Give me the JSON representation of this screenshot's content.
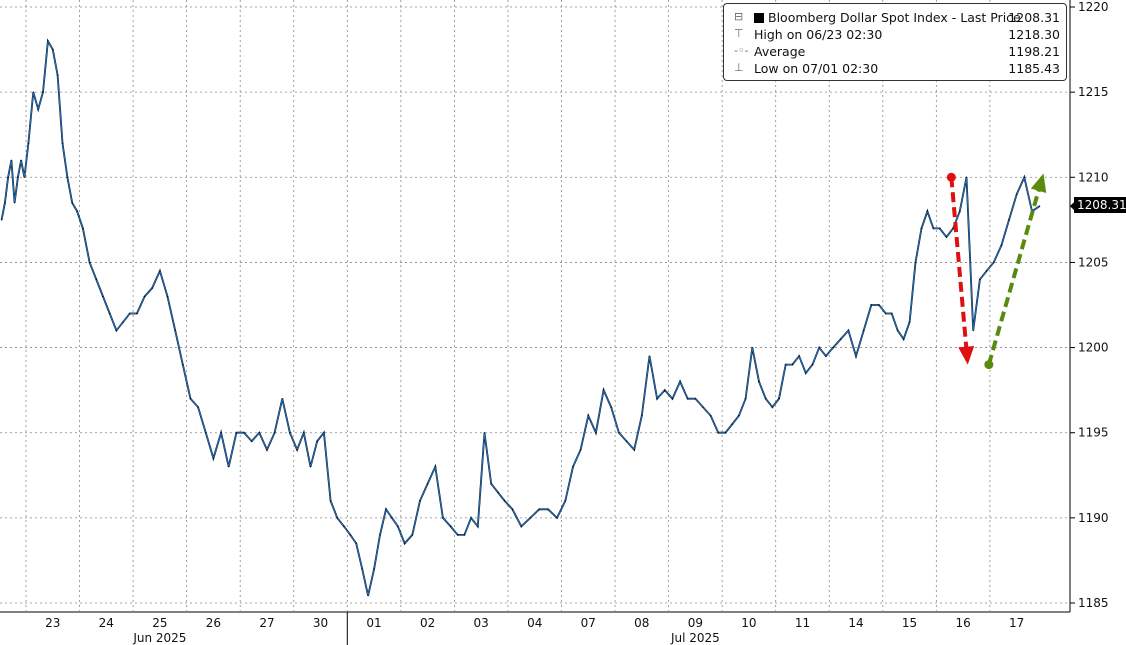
{
  "chart_data": {
    "type": "line",
    "title": "",
    "xlabel": "",
    "ylabel": "",
    "ylim": [
      1185,
      1220
    ],
    "yticks": [
      1185,
      1190,
      1195,
      1200,
      1205,
      1210,
      1215,
      1220
    ],
    "grid": true,
    "legend_placement": "top-right",
    "colors": {
      "line": "#1f6fc0",
      "line_dark": "#000000",
      "down_arrow": "#e01010",
      "up_arrow": "#5a8a10"
    },
    "days": [
      {
        "label": "",
        "date": "2025-06-20",
        "values": [
          1207.5,
          1208.5,
          1210,
          1211,
          1208.5,
          1210,
          1211,
          1210
        ]
      },
      {
        "label": "23",
        "date": "2025-06-23",
        "values": [
          1212,
          1215,
          1214,
          1215,
          1218,
          1217.5,
          1216,
          1212,
          1210,
          1208.5,
          1208
        ]
      },
      {
        "label": "24",
        "date": "2025-06-24",
        "values": [
          1207,
          1205,
          1204,
          1203,
          1202,
          1201,
          1201.5,
          1202
        ]
      },
      {
        "label": "25",
        "date": "2025-06-25",
        "values": [
          1202,
          1203,
          1203.5,
          1204.5,
          1203,
          1201,
          1199
        ]
      },
      {
        "label": "26",
        "date": "2025-06-26",
        "values": [
          1197,
          1196.5,
          1195,
          1193.5,
          1195,
          1193,
          1195
        ]
      },
      {
        "label": "27",
        "date": "2025-06-27",
        "values": [
          1195,
          1194.5,
          1195,
          1194,
          1195,
          1197,
          1195
        ]
      },
      {
        "label": "30",
        "date": "2025-06-30",
        "values": [
          1194,
          1195,
          1193,
          1194.5,
          1195,
          1191,
          1190,
          1189.5
        ]
      },
      {
        "label": "01",
        "date": "2025-07-01",
        "values": [
          1189,
          1188.5,
          1187,
          1185.43,
          1187,
          1189,
          1190.5,
          1190,
          1189.5
        ]
      },
      {
        "label": "02",
        "date": "2025-07-02",
        "values": [
          1188.5,
          1189,
          1191,
          1192,
          1193,
          1190,
          1189.5
        ]
      },
      {
        "label": "03",
        "date": "2025-07-03",
        "values": [
          1189,
          1189,
          1190,
          1189.5,
          1195,
          1192,
          1191.5,
          1191
        ]
      },
      {
        "label": "04",
        "date": "2025-07-04",
        "values": [
          1190.5,
          1189.5,
          1190,
          1190.5,
          1190.5,
          1190
        ]
      },
      {
        "label": "07",
        "date": "2025-07-07",
        "values": [
          1191,
          1193,
          1194,
          1196,
          1195,
          1197.5,
          1196.5
        ]
      },
      {
        "label": "08",
        "date": "2025-07-08",
        "values": [
          1195,
          1194.5,
          1194,
          1196,
          1199.5,
          1197,
          1197.5
        ]
      },
      {
        "label": "09",
        "date": "2025-07-09",
        "values": [
          1197,
          1198,
          1197,
          1197,
          1196.5,
          1196,
          1195
        ]
      },
      {
        "label": "10",
        "date": "2025-07-10",
        "values": [
          1195,
          1195.5,
          1196,
          1197,
          1200,
          1198,
          1197,
          1196.5
        ]
      },
      {
        "label": "11",
        "date": "2025-07-11",
        "values": [
          1197,
          1199,
          1199,
          1199.5,
          1198.5,
          1199,
          1200,
          1199.5
        ]
      },
      {
        "label": "14",
        "date": "2025-07-14",
        "values": [
          1200,
          1200.5,
          1201,
          1199.5,
          1201,
          1202.5,
          1202.5
        ]
      },
      {
        "label": "15",
        "date": "2025-07-15",
        "values": [
          1202,
          1202,
          1201,
          1200.5,
          1201.5,
          1205,
          1207,
          1208,
          1207
        ]
      },
      {
        "label": "16",
        "date": "2025-07-16",
        "values": [
          1207,
          1206.5,
          1207,
          1208,
          1210,
          1201,
          1204,
          1204.5
        ]
      },
      {
        "label": "17",
        "date": "2025-07-17",
        "values": [
          1205,
          1206,
          1207.5,
          1209,
          1210,
          1208,
          1208.31
        ]
      }
    ],
    "month_labels": [
      {
        "label": "Jun 2025",
        "center_day": "25"
      },
      {
        "label": "Jul 2025",
        "center_day": "09"
      }
    ],
    "annotations": [
      {
        "type": "dashed-arrow",
        "color": "down_arrow",
        "from": {
          "date": "2025-07-16",
          "value": 1210
        },
        "to": {
          "date": "2025-07-16",
          "value": 1199
        }
      },
      {
        "type": "dashed-arrow",
        "color": "up_arrow",
        "from": {
          "date": "2025-07-16",
          "value": 1199
        },
        "to": {
          "date": "2025-07-17",
          "value": 1210
        }
      }
    ],
    "last_price": "1208.31"
  },
  "legend": {
    "series": "Bloomberg Dollar Spot Index - Last Price",
    "series_value": "1208.31",
    "high": "High on 06/23 02:30",
    "high_value": "1218.30",
    "average": "Average",
    "average_value": "1198.21",
    "low": "Low on 07/01 02:30",
    "low_value": "1185.43"
  }
}
